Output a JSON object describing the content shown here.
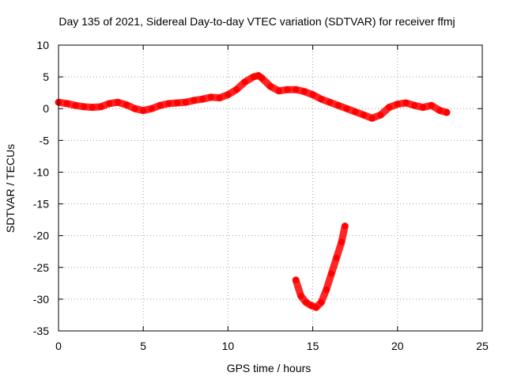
{
  "chart_data": {
    "type": "scatter",
    "title": "Day 135 of 2021, Sidereal Day-to-day VTEC variation (SDTVAR) for receiver ffmj",
    "xlabel": "GPS time / hours",
    "ylabel": "SDTVAR / TECUs",
    "xlim": [
      0,
      25
    ],
    "ylim": [
      -35,
      10
    ],
    "xticks": [
      "0",
      "5",
      "10",
      "15",
      "20",
      "25"
    ],
    "yticks": [
      "10",
      "5",
      "0",
      "-5",
      "-10",
      "-15",
      "-20",
      "-25",
      "-30",
      "-35"
    ],
    "grid": true,
    "legend": "none",
    "series_color": "#ff0000",
    "series": [
      {
        "x": [
          0.0,
          0.5,
          1.0,
          1.5,
          2.0,
          2.5,
          3.0,
          3.5,
          4.0,
          4.5,
          5.0,
          5.5,
          6.0,
          6.5,
          7.0,
          7.5,
          8.0,
          8.5,
          9.0,
          9.5,
          10.0,
          10.5,
          11.0,
          11.5,
          11.8,
          12.0,
          12.5,
          13.0,
          13.5,
          14.0,
          14.5,
          15.0,
          15.5,
          16.0,
          16.5,
          17.0,
          17.5,
          18.0,
          18.5,
          19.0,
          19.5,
          20.0,
          20.5,
          21.0,
          21.5,
          22.0,
          22.5,
          22.9
        ],
        "y": [
          1.0,
          0.8,
          0.5,
          0.3,
          0.2,
          0.3,
          0.8,
          1.0,
          0.6,
          0.0,
          -0.3,
          0.0,
          0.5,
          0.8,
          0.9,
          1.0,
          1.3,
          1.5,
          1.8,
          1.7,
          2.2,
          3.0,
          4.2,
          5.0,
          5.2,
          4.8,
          3.5,
          2.8,
          3.0,
          3.0,
          2.7,
          2.2,
          1.5,
          1.0,
          0.5,
          0.0,
          -0.5,
          -1.0,
          -1.5,
          -1.0,
          0.2,
          0.7,
          0.9,
          0.5,
          0.2,
          0.5,
          -0.3,
          -0.6
        ]
      },
      {
        "x": [
          14.0,
          14.3,
          14.6,
          14.9,
          15.2,
          15.5,
          15.8,
          16.1,
          16.4,
          16.7,
          16.9
        ],
        "y": [
          -27.0,
          -29.5,
          -30.5,
          -31.0,
          -31.3,
          -30.5,
          -28.5,
          -26.0,
          -23.5,
          -21.0,
          -18.5
        ]
      }
    ]
  }
}
